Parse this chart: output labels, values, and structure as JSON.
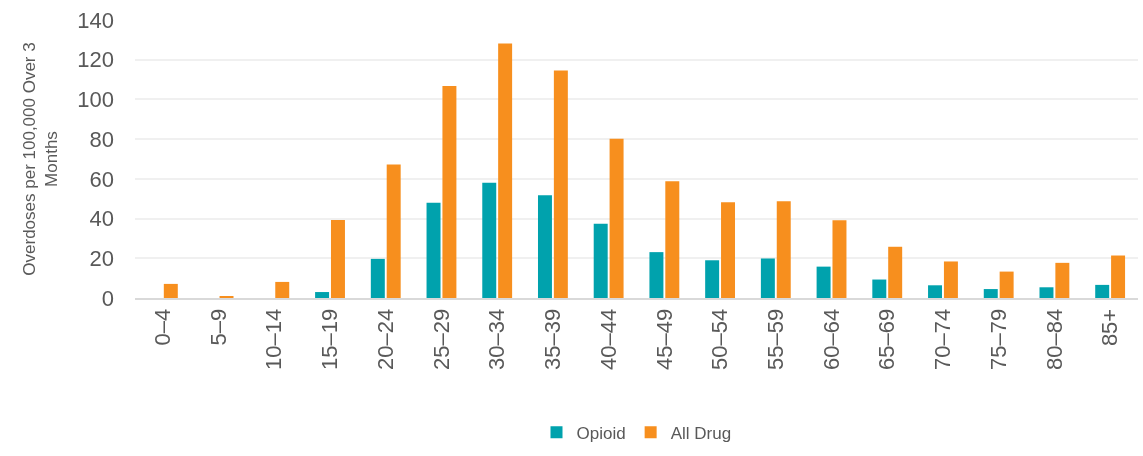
{
  "chart_data": {
    "type": "bar",
    "ylabel": "Overdoses per 100,000 Over 3 Months",
    "categories": [
      "0–4",
      "5–9",
      "10–14",
      "15–19",
      "20–24",
      "25–29",
      "30–34",
      "35–39",
      "40–44",
      "45–49",
      "50–54",
      "55–59",
      "60–64",
      "65–69",
      "70–74",
      "75–79",
      "80–84",
      "85+"
    ],
    "series": [
      {
        "name": "Opioid",
        "color": "#00a2ad",
        "values": [
          0,
          0,
          0,
          3,
          19.7,
          48,
          58.1,
          51.7,
          37.4,
          23.1,
          19,
          19.9,
          15.8,
          9.3,
          6.4,
          4.5,
          5.4,
          6.6
        ]
      },
      {
        "name": "All Drug",
        "color": "#f78f1e",
        "values": [
          7.1,
          1,
          8.1,
          39.3,
          67.2,
          106.7,
          128.2,
          114.6,
          80.2,
          58.8,
          48.2,
          48.7,
          39.1,
          25.8,
          18.4,
          13.3,
          17.7,
          21.4
        ]
      }
    ],
    "ylim": [
      0,
      140
    ],
    "yticks": [
      0,
      20,
      40,
      60,
      80,
      100,
      120,
      140
    ],
    "grid": "y",
    "legend": "bottom"
  }
}
